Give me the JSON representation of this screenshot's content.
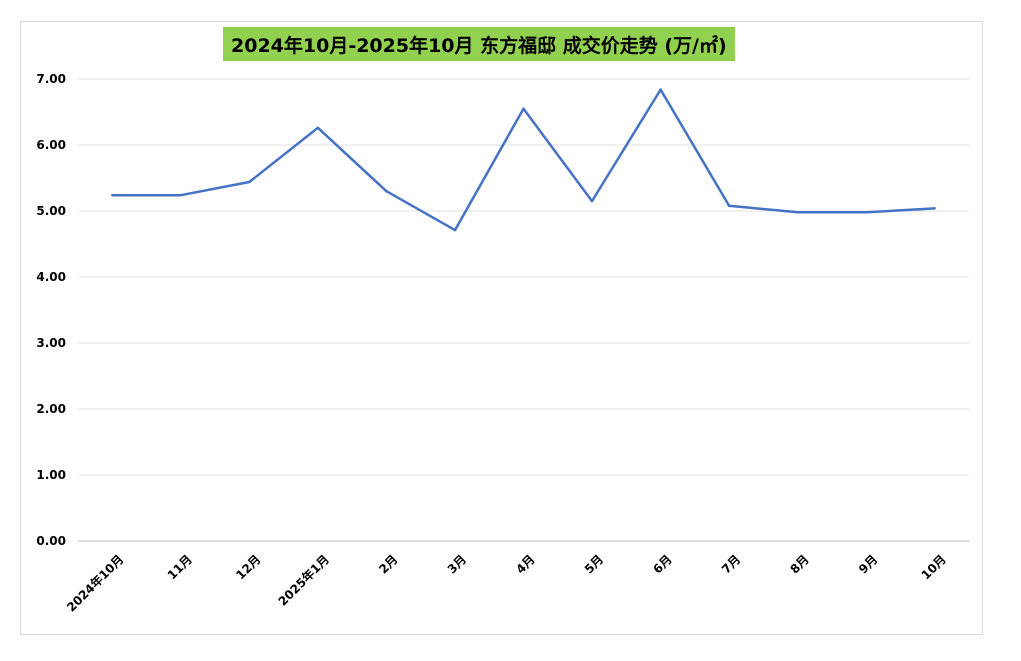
{
  "chart_data": {
    "type": "line",
    "title": "2024年10月-2025年10月 东方福邸 成交价走势 (万/㎡)",
    "categories": [
      "2024年10月",
      "11月",
      "12月",
      "2025年1月",
      "2月",
      "3月",
      "4月",
      "5月",
      "6月",
      "7月",
      "8月",
      "9月",
      "10月"
    ],
    "series": [
      {
        "values": [
          5.24,
          5.24,
          5.44,
          6.26,
          5.3,
          4.71,
          6.55,
          5.15,
          6.84,
          5.08,
          4.98,
          4.98,
          5.04
        ]
      }
    ],
    "ylim": [
      0,
      7
    ],
    "y_ticks": [
      "0.00",
      "1.00",
      "2.00",
      "3.00",
      "4.00",
      "5.00",
      "6.00",
      "7.00"
    ],
    "grid": true,
    "colors": {
      "line": "#4472c4",
      "title_bg": "#92d050",
      "grid": "#e0e0e0"
    }
  }
}
